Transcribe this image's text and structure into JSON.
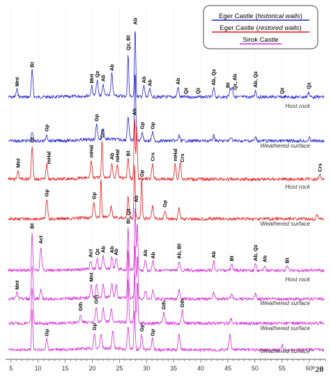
{
  "chart_data": {
    "type": "line",
    "xlabel": "°2θ",
    "xlim": [
      4,
      63
    ],
    "x_ticks": [
      5,
      10,
      15,
      20,
      25,
      30,
      35,
      40,
      45,
      50,
      55,
      60
    ],
    "legend": [
      {
        "text": "Eger Castle (historical walls)",
        "text_plain": "Eger Castle (",
        "text_italic": "historical walls",
        "text_end": ")",
        "color": "#1f1fd6"
      },
      {
        "text": "Eger Castle (restored walls)",
        "text_plain": "Eger Castle (",
        "text_italic": "restored walls",
        "text_end": ")",
        "color": "#e81414"
      },
      {
        "text": "Sirok Castle",
        "text_plain": "Sirok Castle",
        "text_italic": "",
        "text_end": "",
        "color": "#d42ad4"
      }
    ],
    "legend_position": "top-right",
    "series": [
      {
        "group": "Eger Castle (historical walls)",
        "label": "Host rock",
        "color": "#1f1fd6",
        "peaks": [
          [
            6.1,
            0.18
          ],
          [
            8.9,
            0.62
          ],
          [
            19.9,
            0.22
          ],
          [
            20.9,
            0.35
          ],
          [
            22.0,
            0.25
          ],
          [
            23.6,
            0.5
          ],
          [
            26.6,
            1.0
          ],
          [
            27.9,
            1.6
          ],
          [
            29.5,
            0.25
          ],
          [
            30.6,
            0.18
          ],
          [
            35.8,
            0.22
          ],
          [
            42.4,
            0.2
          ],
          [
            45.4,
            0.18
          ],
          [
            45.8,
            0.22
          ],
          [
            50.1,
            0.15
          ],
          [
            59.9,
            0.12
          ]
        ]
      },
      {
        "group": "Eger Castle (historical walls)",
        "label": "Weathered surface",
        "color": "#1f1fd6",
        "peaks": [
          [
            8.9,
            0.22
          ],
          [
            11.6,
            0.15
          ],
          [
            20.8,
            0.35
          ],
          [
            22.0,
            0.25
          ],
          [
            26.6,
            0.55
          ],
          [
            27.9,
            1.6
          ],
          [
            29.2,
            0.2
          ],
          [
            31.1,
            0.2
          ],
          [
            36.0,
            0.12
          ],
          [
            42.4,
            0.12
          ],
          [
            45.6,
            0.1
          ],
          [
            50.1,
            0.08
          ],
          [
            60.0,
            0.06
          ]
        ]
      },
      {
        "group": "Eger Castle (restored walls)",
        "label": "Host rock",
        "color": "#e81414",
        "peaks": [
          [
            6.3,
            0.2
          ],
          [
            8.9,
            0.78
          ],
          [
            11.6,
            0.35
          ],
          [
            19.8,
            0.4
          ],
          [
            21.8,
            0.85
          ],
          [
            23.6,
            0.35
          ],
          [
            24.6,
            0.3
          ],
          [
            26.6,
            0.45
          ],
          [
            27.8,
            1.4
          ],
          [
            28.2,
            1.2
          ],
          [
            31.1,
            0.35
          ],
          [
            35.3,
            0.35
          ],
          [
            36.2,
            0.4
          ],
          [
            62.0,
            0.1
          ]
        ]
      },
      {
        "group": "Eger Castle (restored walls)",
        "label": "Weathered surface",
        "color": "#e81414",
        "peaks": [
          [
            11.6,
            0.45
          ],
          [
            20.3,
            0.35
          ],
          [
            21.6,
            0.9
          ],
          [
            23.5,
            0.25
          ],
          [
            26.6,
            0.5
          ],
          [
            27.8,
            1.25
          ],
          [
            29.1,
            0.9
          ],
          [
            31.1,
            0.3
          ],
          [
            33.4,
            0.2
          ],
          [
            36.0,
            0.25
          ],
          [
            61.5,
            0.1
          ]
        ]
      },
      {
        "group": "Sirok Castle",
        "label": "Host rock",
        "color": "#d42ad4",
        "peaks": [
          [
            8.9,
            0.9
          ],
          [
            10.5,
            0.55
          ],
          [
            19.7,
            0.2
          ],
          [
            20.9,
            0.25
          ],
          [
            22.0,
            0.3
          ],
          [
            23.6,
            0.3
          ],
          [
            24.4,
            0.25
          ],
          [
            26.6,
            1.0
          ],
          [
            27.9,
            1.5
          ],
          [
            28.3,
            1.1
          ],
          [
            29.8,
            0.25
          ],
          [
            31.2,
            0.2
          ],
          [
            36.0,
            0.2
          ],
          [
            42.4,
            0.22
          ],
          [
            45.7,
            0.15
          ],
          [
            50.1,
            0.15
          ],
          [
            51.8,
            0.12
          ],
          [
            55.9,
            0.1
          ]
        ]
      },
      {
        "group": "Sirok Castle",
        "label": "Weathered surface",
        "color": "#d42ad4",
        "peaks": [
          [
            6.1,
            0.15
          ],
          [
            8.9,
            0.75
          ],
          [
            10.5,
            0.2
          ],
          [
            19.8,
            0.3
          ],
          [
            20.8,
            0.3
          ],
          [
            22.0,
            0.3
          ],
          [
            23.6,
            0.35
          ],
          [
            24.4,
            0.3
          ],
          [
            26.6,
            1.1
          ],
          [
            27.9,
            1.3
          ],
          [
            28.3,
            1.0
          ],
          [
            29.8,
            0.2
          ],
          [
            31.2,
            0.2
          ],
          [
            36.0,
            0.2
          ],
          [
            42.4,
            0.15
          ],
          [
            45.7,
            0.12
          ],
          [
            50.1,
            0.12
          ]
        ]
      },
      {
        "group": "Sirok Castle",
        "label": "Weathered surface",
        "color": "#d42ad4",
        "peaks": [
          [
            8.9,
            0.8
          ],
          [
            17.8,
            0.2
          ],
          [
            20.7,
            0.35
          ],
          [
            22.0,
            0.3
          ],
          [
            23.5,
            0.3
          ],
          [
            26.6,
            1.0
          ],
          [
            27.8,
            1.2
          ],
          [
            28.3,
            1.0
          ],
          [
            33.2,
            0.25
          ],
          [
            36.6,
            0.3
          ],
          [
            45.6,
            0.1
          ]
        ]
      },
      {
        "group": "Sirok Castle",
        "label": "Weathered surface",
        "color": "#d42ad4",
        "peaks": [
          [
            8.9,
            0.95
          ],
          [
            11.6,
            0.25
          ],
          [
            20.4,
            0.35
          ],
          [
            21.6,
            0.35
          ],
          [
            23.8,
            0.4
          ],
          [
            26.6,
            0.5
          ],
          [
            27.8,
            0.9
          ],
          [
            29.1,
            0.35
          ],
          [
            31.1,
            0.25
          ],
          [
            36.0,
            0.4
          ],
          [
            45.4,
            0.35
          ],
          [
            55.0,
            0.12
          ]
        ]
      }
    ],
    "annotations": [
      {
        "text": "Mnt",
        "x": 6.1,
        "series": 0
      },
      {
        "text": "Bt",
        "x": 8.9,
        "series": 0
      },
      {
        "text": "Mnt",
        "x": 19.9,
        "series": 0
      },
      {
        "text": "Qz",
        "x": 20.9,
        "series": 0
      },
      {
        "text": "Ab",
        "x": 22.0,
        "series": 0
      },
      {
        "text": "Ab",
        "x": 23.6,
        "series": 0
      },
      {
        "text": "Qz, Bt",
        "x": 26.6,
        "series": 0
      },
      {
        "text": "Ab",
        "x": 27.9,
        "series": 0
      },
      {
        "text": "Ab",
        "x": 29.5,
        "series": 0
      },
      {
        "text": "Ab",
        "x": 30.6,
        "series": 0
      },
      {
        "text": "Ab",
        "x": 35.8,
        "series": 0
      },
      {
        "text": "Qz",
        "x": 37.2,
        "series": 0
      },
      {
        "text": "Qz",
        "x": 39.5,
        "series": 0
      },
      {
        "text": "Ab, Qz",
        "x": 42.4,
        "series": 0
      },
      {
        "text": "Bt",
        "x": 45.0,
        "series": 0
      },
      {
        "text": "Qz, Ab",
        "x": 46.3,
        "series": 0
      },
      {
        "text": "Ab, Qz",
        "x": 50.1,
        "series": 0
      },
      {
        "text": "Qz",
        "x": 55.0,
        "series": 0
      },
      {
        "text": "Qz",
        "x": 59.9,
        "series": 0
      },
      {
        "text": "Gp",
        "x": 11.6,
        "series": 1
      },
      {
        "text": "Gp",
        "x": 20.8,
        "series": 1
      },
      {
        "text": "Gp",
        "x": 29.2,
        "series": 1
      },
      {
        "text": "Gp",
        "x": 31.1,
        "series": 1
      },
      {
        "text": "Mnt",
        "x": 6.3,
        "series": 2
      },
      {
        "text": "Bt",
        "x": 8.9,
        "series": 2
      },
      {
        "text": "mHal",
        "x": 12.0,
        "series": 2
      },
      {
        "text": "mHal",
        "x": 19.8,
        "series": 2
      },
      {
        "text": "Crs",
        "x": 21.8,
        "series": 2
      },
      {
        "text": "Ab",
        "x": 23.6,
        "series": 2
      },
      {
        "text": "mHal",
        "x": 24.6,
        "series": 2
      },
      {
        "text": "Bt",
        "x": 26.6,
        "series": 2
      },
      {
        "text": "Ab",
        "x": 27.8,
        "series": 2
      },
      {
        "text": "Crs",
        "x": 31.1,
        "series": 2
      },
      {
        "text": "mHal",
        "x": 35.3,
        "series": 2
      },
      {
        "text": "Crs",
        "x": 36.6,
        "series": 2
      },
      {
        "text": "Crs",
        "x": 62.0,
        "series": 2
      },
      {
        "text": "Gp",
        "x": 11.6,
        "series": 3
      },
      {
        "text": "Gp",
        "x": 20.3,
        "series": 3
      },
      {
        "text": "Gp",
        "x": 29.1,
        "series": 3
      },
      {
        "text": "Gp",
        "x": 33.4,
        "series": 3
      },
      {
        "text": "Bt",
        "x": 8.9,
        "series": 4
      },
      {
        "text": "Act",
        "x": 10.5,
        "series": 4
      },
      {
        "text": "Act",
        "x": 19.7,
        "series": 4
      },
      {
        "text": "Qz",
        "x": 20.9,
        "series": 4
      },
      {
        "text": "Ab",
        "x": 22.0,
        "series": 4
      },
      {
        "text": "Ab",
        "x": 23.6,
        "series": 4
      },
      {
        "text": "Ab",
        "x": 24.4,
        "series": 4
      },
      {
        "text": "Bt, Qz",
        "x": 26.6,
        "series": 4
      },
      {
        "text": "Ab",
        "x": 28.1,
        "series": 4
      },
      {
        "text": "Ab",
        "x": 29.8,
        "series": 4
      },
      {
        "text": "Ab",
        "x": 31.2,
        "series": 4
      },
      {
        "text": "Ab, Bt",
        "x": 36.0,
        "series": 4
      },
      {
        "text": "Ab",
        "x": 42.4,
        "series": 4
      },
      {
        "text": "Bt",
        "x": 45.7,
        "series": 4
      },
      {
        "text": "Ab, Qz",
        "x": 50.1,
        "series": 4
      },
      {
        "text": "Ab",
        "x": 51.8,
        "series": 4
      },
      {
        "text": "Bt",
        "x": 55.9,
        "series": 4
      },
      {
        "text": "Mnt",
        "x": 6.1,
        "series": 5
      },
      {
        "text": "Mnt",
        "x": 19.8,
        "series": 5
      },
      {
        "text": "Gth",
        "x": 17.8,
        "series": 6
      },
      {
        "text": "Gth",
        "x": 20.7,
        "series": 6
      },
      {
        "text": "Gth",
        "x": 33.2,
        "series": 6
      },
      {
        "text": "Gth",
        "x": 36.6,
        "series": 6
      },
      {
        "text": "Gp",
        "x": 11.6,
        "series": 7
      },
      {
        "text": "Gp",
        "x": 20.4,
        "series": 7
      },
      {
        "text": "Gp",
        "x": 29.1,
        "series": 7
      },
      {
        "text": "Gp",
        "x": 31.1,
        "series": 7
      }
    ]
  }
}
